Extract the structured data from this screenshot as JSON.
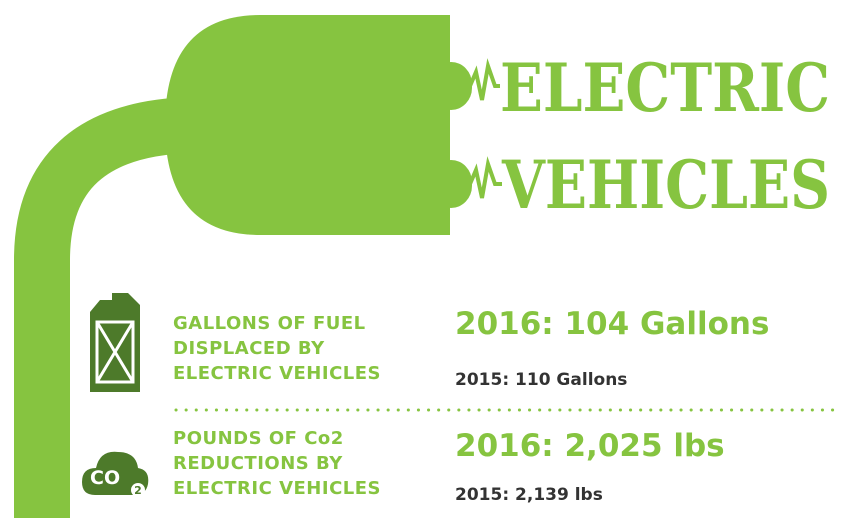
{
  "title": {
    "line1": "ELECTRIC",
    "line2": "VEHICLES"
  },
  "stats": [
    {
      "label": [
        "GALLONS OF FUEL",
        "DISPLACED BY",
        "ELECTRIC VEHICLES"
      ],
      "current": "2016: 104 Gallons",
      "previous": "2015: 110 Gallons"
    },
    {
      "icon_text": "CO",
      "icon_sub": "2",
      "label": [
        "POUNDS OF Co2",
        "REDUCTIONS BY",
        "ELECTRIC VEHICLES"
      ],
      "current": "2016: 2,025 lbs",
      "previous": "2015: 2,139 lbs"
    }
  ]
}
